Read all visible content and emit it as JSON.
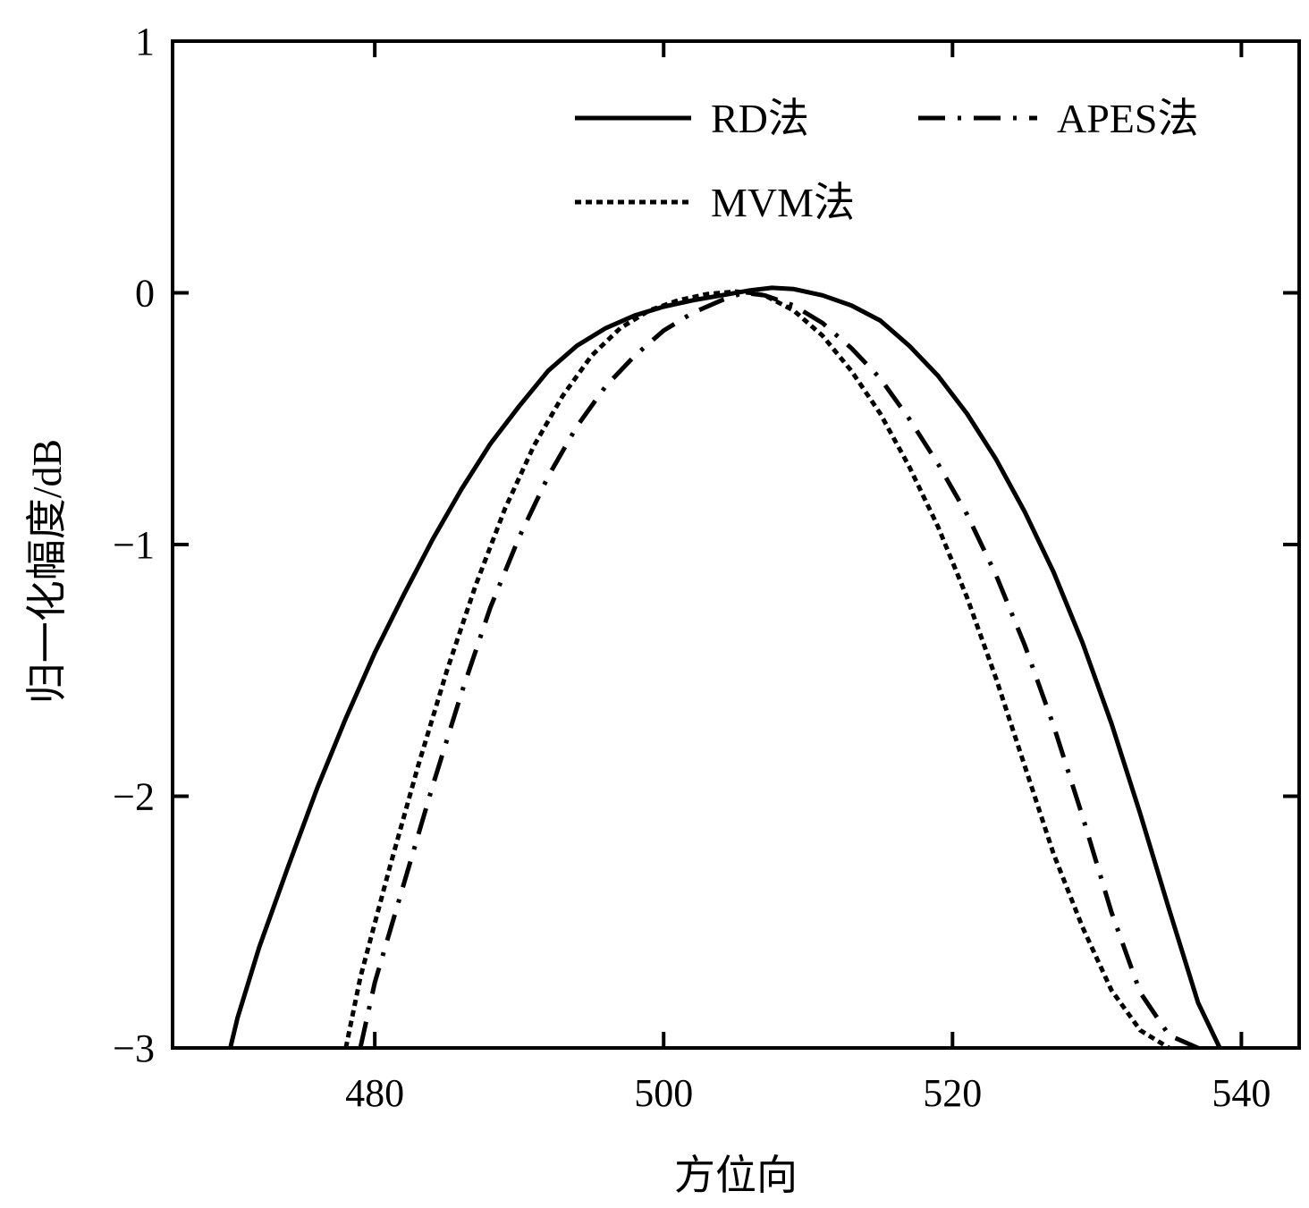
{
  "chart_data": {
    "type": "line",
    "title": "",
    "xlabel": "方位向",
    "ylabel": "归一化幅度/dB",
    "xlim": [
      466,
      544
    ],
    "ylim": [
      -3,
      1
    ],
    "xticks": [
      480,
      500,
      520,
      540
    ],
    "yticks": [
      1,
      0,
      -1,
      -2,
      -3
    ],
    "ytick_labels": [
      "1",
      "0",
      "−1",
      "−2",
      "−3"
    ],
    "grid": false,
    "legend_position": "top-right",
    "series": [
      {
        "name": "RD法",
        "style": "solid",
        "x": [
          470.0,
          470.5,
          472,
          474,
          476,
          478,
          480,
          482,
          484,
          486,
          488,
          490,
          492,
          494,
          496,
          498,
          500,
          502,
          504,
          506,
          507.5,
          509,
          511,
          513,
          515,
          517,
          519,
          521,
          523,
          525,
          527,
          529,
          531,
          533,
          535,
          537,
          538.5
        ],
        "y": [
          -3.0,
          -2.88,
          -2.6,
          -2.28,
          -1.97,
          -1.69,
          -1.43,
          -1.2,
          -0.98,
          -0.78,
          -0.6,
          -0.45,
          -0.31,
          -0.21,
          -0.14,
          -0.09,
          -0.055,
          -0.03,
          -0.01,
          0.01,
          0.02,
          0.015,
          -0.01,
          -0.05,
          -0.11,
          -0.21,
          -0.33,
          -0.48,
          -0.66,
          -0.87,
          -1.11,
          -1.39,
          -1.71,
          -2.07,
          -2.45,
          -2.82,
          -3.0
        ]
      },
      {
        "name": "APES法",
        "style": "dashdot",
        "x": [
          479.0,
          480,
          482,
          484,
          486,
          488,
          490,
          492,
          494,
          496,
          498,
          500,
          502,
          504,
          505.5,
          507,
          509,
          511,
          513,
          515,
          517,
          519,
          521,
          523,
          525,
          527,
          529,
          531,
          533,
          535,
          537.0
        ],
        "y": [
          -3.0,
          -2.74,
          -2.35,
          -1.96,
          -1.59,
          -1.25,
          -0.97,
          -0.73,
          -0.53,
          -0.37,
          -0.25,
          -0.15,
          -0.08,
          -0.03,
          0.0,
          -0.01,
          -0.05,
          -0.12,
          -0.22,
          -0.34,
          -0.5,
          -0.68,
          -0.88,
          -1.12,
          -1.4,
          -1.72,
          -2.08,
          -2.46,
          -2.78,
          -2.95,
          -3.0
        ]
      },
      {
        "name": "MVM法",
        "style": "dotted",
        "x": [
          478.0,
          479,
          481,
          483,
          485,
          487,
          489,
          491,
          493,
          495,
          497,
          499,
          501,
          503,
          505,
          506,
          507,
          509,
          511,
          513,
          515,
          517,
          519,
          521,
          523,
          525,
          527,
          529,
          531,
          533,
          535.0
        ],
        "y": [
          -3.0,
          -2.72,
          -2.29,
          -1.88,
          -1.5,
          -1.16,
          -0.86,
          -0.61,
          -0.41,
          -0.25,
          -0.14,
          -0.07,
          -0.03,
          -0.005,
          0.005,
          0.0,
          -0.01,
          -0.07,
          -0.17,
          -0.31,
          -0.48,
          -0.69,
          -0.93,
          -1.21,
          -1.53,
          -1.88,
          -2.23,
          -2.52,
          -2.77,
          -2.93,
          -3.0
        ]
      }
    ]
  }
}
